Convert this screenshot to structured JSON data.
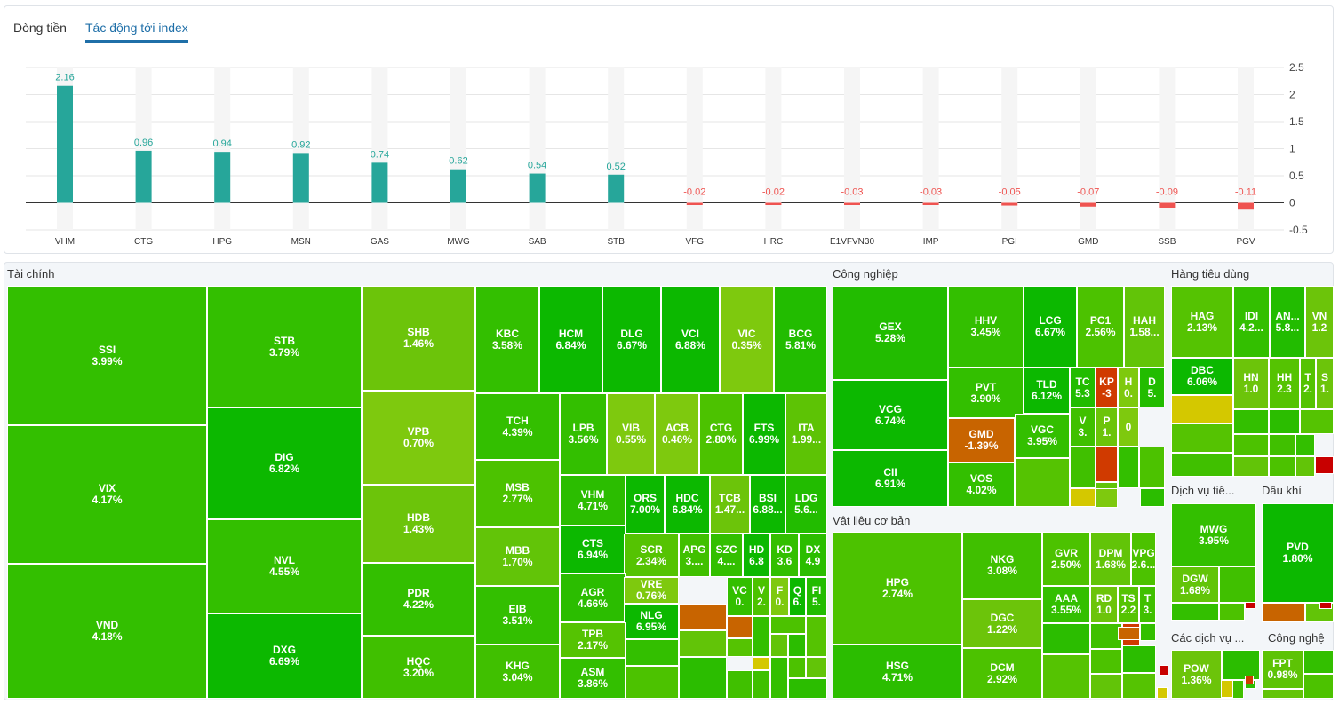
{
  "tabs": [
    {
      "label": "Dòng tiền",
      "active": false
    },
    {
      "label": "Tác động tới index",
      "active": true
    }
  ],
  "chart_data": {
    "type": "bar",
    "categories": [
      "VHM",
      "CTG",
      "HPG",
      "MSN",
      "GAS",
      "MWG",
      "SAB",
      "STB",
      "VFG",
      "HRC",
      "E1VFVN30",
      "IMP",
      "PGI",
      "GMD",
      "SSB",
      "PGV"
    ],
    "values": [
      2.16,
      0.96,
      0.94,
      0.92,
      0.74,
      0.62,
      0.54,
      0.52,
      -0.02,
      -0.02,
      -0.03,
      -0.03,
      -0.05,
      -0.07,
      -0.09,
      -0.11
    ],
    "value_labels": [
      "2.16",
      "0.96",
      "0.94",
      "0.92",
      "0.74",
      "0.62",
      "0.54",
      "0.52",
      "-0.02",
      "-0.02",
      "-0.03",
      "-0.03",
      "-0.05",
      "-0.07",
      "-0.09",
      "-0.11"
    ],
    "yticks": [
      "2.5",
      "2",
      "1.5",
      "1",
      "0.5",
      "0",
      "-0.5"
    ],
    "ylim": [
      -0.5,
      2.5
    ],
    "positive_color": "#26a69a",
    "negative_color": "#ef5350",
    "grid": true
  },
  "sectors": [
    {
      "title": "Tài chính"
    },
    {
      "title": "Công nghiệp"
    },
    {
      "title": "Hàng tiêu dùng"
    },
    {
      "title": "Vật liệu cơ bản"
    },
    {
      "title": "Dịch vụ tiê..."
    },
    {
      "title": "Dầu khí"
    },
    {
      "title": "Các dịch vụ ..."
    },
    {
      "title": "Công nghệ"
    }
  ],
  "tiles": [
    {
      "symbol": "SSI",
      "change": "3.99%",
      "color": "#33bf00"
    },
    {
      "symbol": "VIX",
      "change": "4.17%",
      "color": "#33bf00"
    },
    {
      "symbol": "VND",
      "change": "4.18%",
      "color": "#33bf00"
    },
    {
      "symbol": "STB",
      "change": "3.79%",
      "color": "#33bf00"
    },
    {
      "symbol": "DIG",
      "change": "6.82%",
      "color": "#0cb800"
    },
    {
      "symbol": "NVL",
      "change": "4.55%",
      "color": "#33bf00"
    },
    {
      "symbol": "DXG",
      "change": "6.69%",
      "color": "#0cb800"
    },
    {
      "symbol": "SHB",
      "change": "1.46%",
      "color": "#6cc40a"
    },
    {
      "symbol": "VPB",
      "change": "0.70%",
      "color": "#7ec90e"
    },
    {
      "symbol": "HDB",
      "change": "1.43%",
      "color": "#6cc40a"
    },
    {
      "symbol": "PDR",
      "change": "4.22%",
      "color": "#33bf00"
    },
    {
      "symbol": "HQC",
      "change": "3.20%",
      "color": "#40c000"
    },
    {
      "symbol": "KBC",
      "change": "3.58%",
      "color": "#33bf00"
    },
    {
      "symbol": "HCM",
      "change": "6.84%",
      "color": "#0cb800"
    },
    {
      "symbol": "DLG",
      "change": "6.67%",
      "color": "#0cb800"
    },
    {
      "symbol": "VCI",
      "change": "6.88%",
      "color": "#0cb800"
    },
    {
      "symbol": "VIC",
      "change": "0.35%",
      "color": "#7ec90e"
    },
    {
      "symbol": "BCG",
      "change": "5.81%",
      "color": "#22bc00"
    },
    {
      "symbol": "TCH",
      "change": "4.39%",
      "color": "#33bf00"
    },
    {
      "symbol": "LPB",
      "change": "3.56%",
      "color": "#33bf00"
    },
    {
      "symbol": "VIB",
      "change": "0.55%",
      "color": "#7ec90e"
    },
    {
      "symbol": "ACB",
      "change": "0.46%",
      "color": "#7ec90e"
    },
    {
      "symbol": "CTG",
      "change": "2.80%",
      "color": "#4cc200"
    },
    {
      "symbol": "FTS",
      "change": "6.99%",
      "color": "#0cb800"
    },
    {
      "symbol": "ITA",
      "change": "1.99...",
      "color": "#5dc305"
    },
    {
      "symbol": "MSB",
      "change": "2.77%",
      "color": "#4cc200"
    },
    {
      "symbol": "VHM",
      "change": "4.71%",
      "color": "#2bbd00"
    },
    {
      "symbol": "ORS",
      "change": "7.00%",
      "color": "#0cb800"
    },
    {
      "symbol": "HDC",
      "change": "6.84%",
      "color": "#0cb800"
    },
    {
      "symbol": "TCB",
      "change": "1.47...",
      "color": "#6cc40a"
    },
    {
      "symbol": "BSI",
      "change": "6.88...",
      "color": "#0cb800"
    },
    {
      "symbol": "LDG",
      "change": "5.6...",
      "color": "#22bc00"
    },
    {
      "symbol": "MBB",
      "change": "1.70%",
      "color": "#62c408"
    },
    {
      "symbol": "CTS",
      "change": "6.94%",
      "color": "#0cb800"
    },
    {
      "symbol": "SCR",
      "change": "2.34%",
      "color": "#55c302"
    },
    {
      "symbol": "APG",
      "change": "3....",
      "color": "#40c000"
    },
    {
      "symbol": "SZC",
      "change": "4....",
      "color": "#33bf00"
    },
    {
      "symbol": "HD",
      "change": "6.8",
      "color": "#0cb800"
    },
    {
      "symbol": "KD",
      "change": "3.6",
      "color": "#33bf00"
    },
    {
      "symbol": "DX",
      "change": "4.9",
      "color": "#2bbd00"
    },
    {
      "symbol": "EIB",
      "change": "3.51%",
      "color": "#33bf00"
    },
    {
      "symbol": "AGR",
      "change": "4.66%",
      "color": "#2bbd00"
    },
    {
      "symbol": "VRE",
      "change": "0.76%",
      "color": "#7ec90e"
    },
    {
      "symbol": "NLG",
      "change": "6.95%",
      "color": "#0cb800"
    },
    {
      "symbol": "VC",
      "change": "0.",
      "color": "#33bf00"
    },
    {
      "symbol": "V",
      "change": "2.",
      "color": "#4cc200"
    },
    {
      "symbol": "F",
      "change": "0.",
      "color": "#7ec90e"
    },
    {
      "symbol": "Q",
      "change": "6.",
      "color": "#0cb800"
    },
    {
      "symbol": "FI",
      "change": "5.",
      "color": "#22bc00"
    },
    {
      "symbol": "KHG",
      "change": "3.04%",
      "color": "#40c000"
    },
    {
      "symbol": "TPB",
      "change": "2.17%",
      "color": "#55c302"
    },
    {
      "symbol": "ASM",
      "change": "3.86%",
      "color": "#33bf00"
    },
    {
      "symbol": "GEX",
      "change": "5.28%",
      "color": "#22bc00"
    },
    {
      "symbol": "VCG",
      "change": "6.74%",
      "color": "#0cb800"
    },
    {
      "symbol": "CII",
      "change": "6.91%",
      "color": "#0cb800"
    },
    {
      "symbol": "HHV",
      "change": "3.45%",
      "color": "#33bf00"
    },
    {
      "symbol": "LCG",
      "change": "6.67%",
      "color": "#0cb800"
    },
    {
      "symbol": "PC1",
      "change": "2.56%",
      "color": "#4cc200"
    },
    {
      "symbol": "HAH",
      "change": "1.58...",
      "color": "#62c408"
    },
    {
      "symbol": "PVT",
      "change": "3.90%",
      "color": "#33bf00"
    },
    {
      "symbol": "TLD",
      "change": "6.12%",
      "color": "#0cb800"
    },
    {
      "symbol": "TC",
      "change": "5.3",
      "color": "#22bc00"
    },
    {
      "symbol": "KP",
      "change": "-3",
      "color": "#d03a00"
    },
    {
      "symbol": "H",
      "change": "0.",
      "color": "#7ec90e"
    },
    {
      "symbol": "D",
      "change": "5.",
      "color": "#22bc00"
    },
    {
      "symbol": "GMD",
      "change": "-1.39%",
      "color": "#c86400"
    },
    {
      "symbol": "VGC",
      "change": "3.95%",
      "color": "#33bf00"
    },
    {
      "symbol": "V",
      "change": "3.",
      "color": "#40c000"
    },
    {
      "symbol": "P",
      "change": "1.",
      "color": "#6cc40a"
    },
    {
      "symbol": "0",
      "change": "",
      "color": "#7ec90e"
    },
    {
      "symbol": "VOS",
      "change": "4.02%",
      "color": "#33bf00"
    },
    {
      "symbol": "HAG",
      "change": "2.13%",
      "color": "#55c302"
    },
    {
      "symbol": "IDI",
      "change": "4.2...",
      "color": "#33bf00"
    },
    {
      "symbol": "AN...",
      "change": "5.8...",
      "color": "#22bc00"
    },
    {
      "symbol": "VN",
      "change": "1.2",
      "color": "#6cc40a"
    },
    {
      "symbol": "DBC",
      "change": "6.06%",
      "color": "#0cb800"
    },
    {
      "symbol": "HN",
      "change": "1.0",
      "color": "#6cc40a"
    },
    {
      "symbol": "HH",
      "change": "2.3",
      "color": "#55c302"
    },
    {
      "symbol": "T",
      "change": "2.",
      "color": "#55c302"
    },
    {
      "symbol": "S",
      "change": "1.",
      "color": "#6cc40a"
    },
    {
      "symbol": "HPG",
      "change": "2.74%",
      "color": "#4cc200"
    },
    {
      "symbol": "HSG",
      "change": "4.71%",
      "color": "#2bbd00"
    },
    {
      "symbol": "NKG",
      "change": "3.08%",
      "color": "#40c000"
    },
    {
      "symbol": "DGC",
      "change": "1.22%",
      "color": "#6cc40a"
    },
    {
      "symbol": "DCM",
      "change": "2.92%",
      "color": "#4cc200"
    },
    {
      "symbol": "GVR",
      "change": "2.50%",
      "color": "#4cc200"
    },
    {
      "symbol": "DPM",
      "change": "1.68%",
      "color": "#62c408"
    },
    {
      "symbol": "VPG",
      "change": "2.6...",
      "color": "#4cc200"
    },
    {
      "symbol": "AAA",
      "change": "3.55%",
      "color": "#33bf00"
    },
    {
      "symbol": "RD",
      "change": "1.0",
      "color": "#6cc40a"
    },
    {
      "symbol": "TS",
      "change": "2.2",
      "color": "#55c302"
    },
    {
      "symbol": "T",
      "change": "3.",
      "color": "#40c000"
    },
    {
      "symbol": "MWG",
      "change": "3.95%",
      "color": "#33bf00"
    },
    {
      "symbol": "DGW",
      "change": "1.68%",
      "color": "#62c408"
    },
    {
      "symbol": "PVD",
      "change": "1.80%",
      "color": "#0cb800"
    },
    {
      "symbol": "POW",
      "change": "1.36%",
      "color": "#6cc40a"
    },
    {
      "symbol": "FPT",
      "change": "0.98%",
      "color": "#5dc305"
    }
  ],
  "fillers": [
    "#c86400",
    "#c86400",
    "#d4c800",
    "#d4c800",
    "#7ec90e",
    "#d03a00",
    "#d4c800",
    "#c86400",
    "#d03a00",
    "#c80000",
    "#d4c800",
    "#d4c800",
    "#c80000",
    "#c86400",
    "#d03a00",
    "#c80000",
    "#c80000"
  ]
}
